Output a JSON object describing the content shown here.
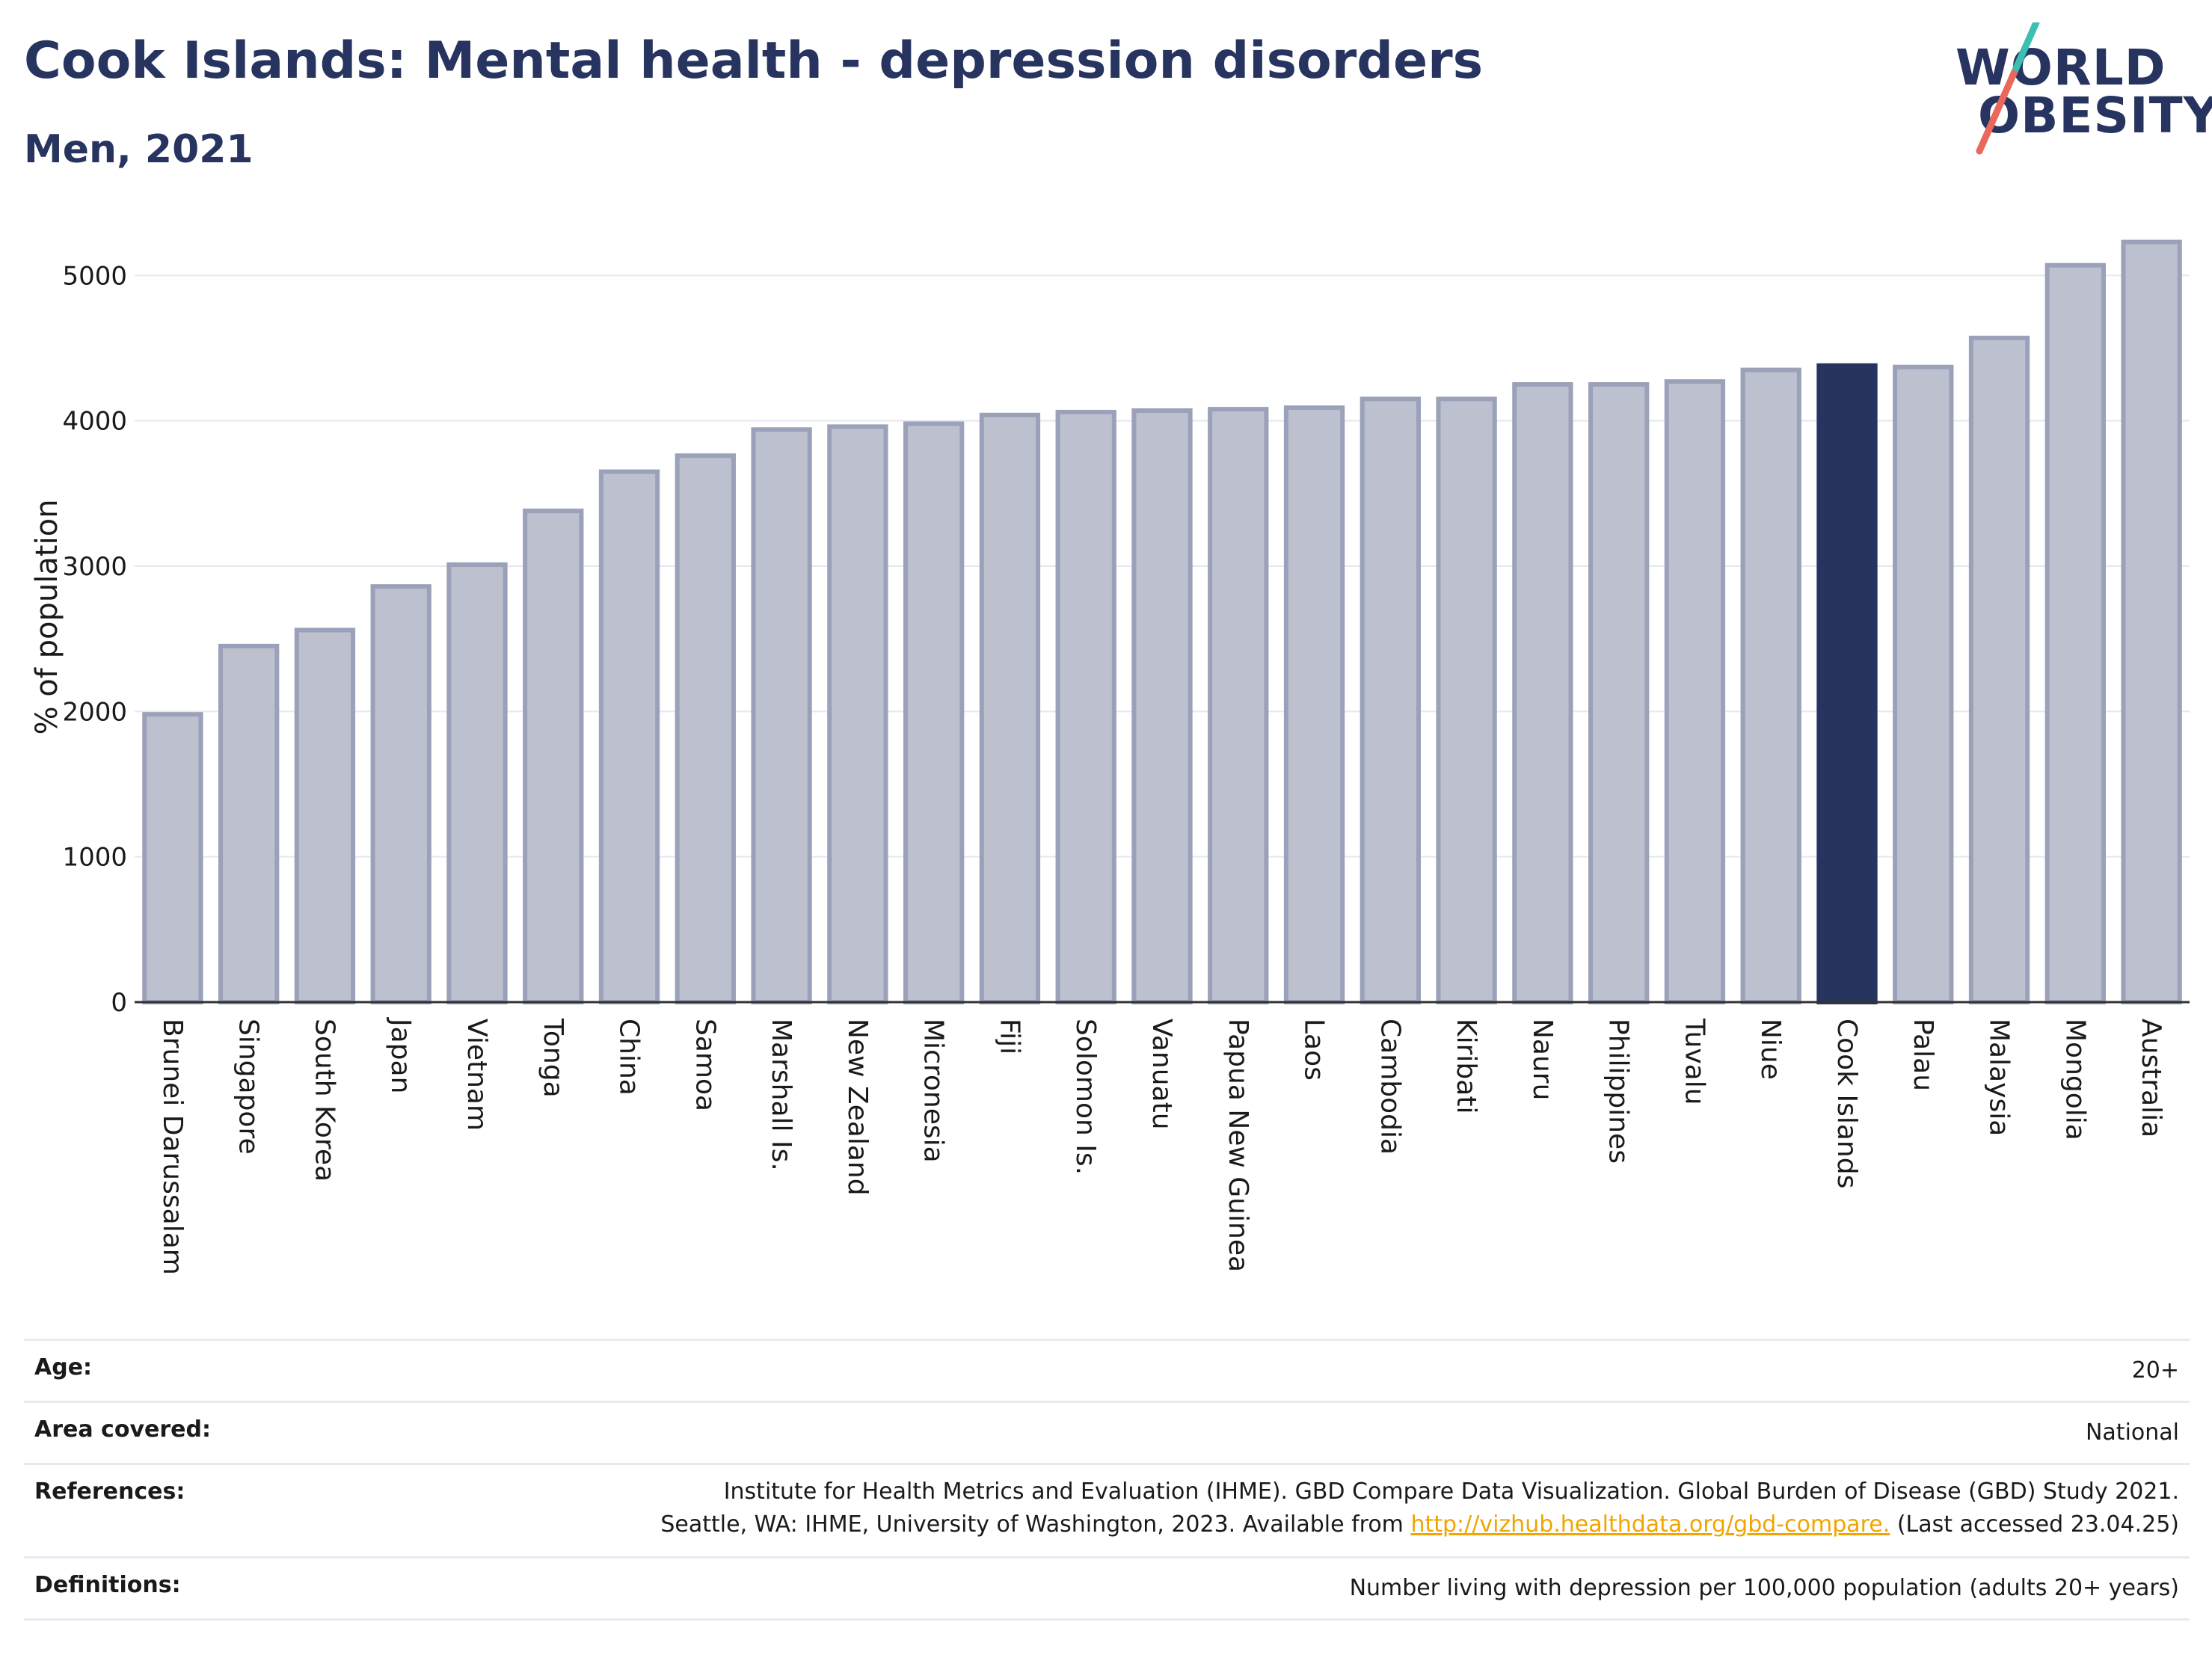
{
  "header": {
    "title": "Cook Islands: Mental health - depression disorders",
    "subtitle": "Men, 2021"
  },
  "logo": {
    "line1": "WORLD",
    "line2": "OBESITY",
    "accent_teal": "#3bbfb2",
    "accent_red": "#e8685a"
  },
  "colors": {
    "bar": "#bcc0cf",
    "bar_border": "#9aa1b9",
    "highlight": "#283460",
    "text_dark": "#283460"
  },
  "chart_data": {
    "type": "bar",
    "title": "Cook Islands: Mental health - depression disorders",
    "subtitle": "Men, 2021",
    "ylabel": "% of population",
    "xlabel": "",
    "ylim": [
      0,
      5300
    ],
    "yticks": [
      0,
      1000,
      2000,
      3000,
      4000,
      5000
    ],
    "grid": true,
    "highlight": "Cook Islands",
    "categories": [
      "Brunei Darussalam",
      "Singapore",
      "South Korea",
      "Japan",
      "Vietnam",
      "Tonga",
      "China",
      "Samoa",
      "Marshall Is.",
      "New Zealand",
      "Micronesia",
      "Fiji",
      "Solomon Is.",
      "Vanuatu",
      "Papua New Guinea",
      "Laos",
      "Cambodia",
      "Kiribati",
      "Nauru",
      "Philippines",
      "Tuvalu",
      "Niue",
      "Cook Islands",
      "Palau",
      "Malaysia",
      "Mongolia",
      "Australia"
    ],
    "values": [
      1980,
      2450,
      2560,
      2860,
      3010,
      3380,
      3650,
      3760,
      3940,
      3960,
      3980,
      4040,
      4060,
      4070,
      4080,
      4090,
      4150,
      4150,
      4250,
      4250,
      4270,
      4350,
      4380,
      4370,
      4570,
      5070,
      5230
    ]
  },
  "meta": {
    "age_label": "Age:",
    "age_value": "20+",
    "area_label": "Area covered:",
    "area_value": "National",
    "ref_label": "References:",
    "ref_line1": "Institute for Health Metrics and Evaluation (IHME). GBD Compare Data Visualization. Global Burden of Disease (GBD) Study 2021.",
    "ref_line2_pre": "Seattle, WA: IHME, University of Washington, 2023. Available from ",
    "ref_link": "http://vizhub.healthdata.org/gbd-compare.",
    "ref_line2_post": " (Last accessed 23.04.25)",
    "def_label": "Definitions:",
    "def_value": "Number living with depression per 100,000 population (adults 20+ years)"
  }
}
